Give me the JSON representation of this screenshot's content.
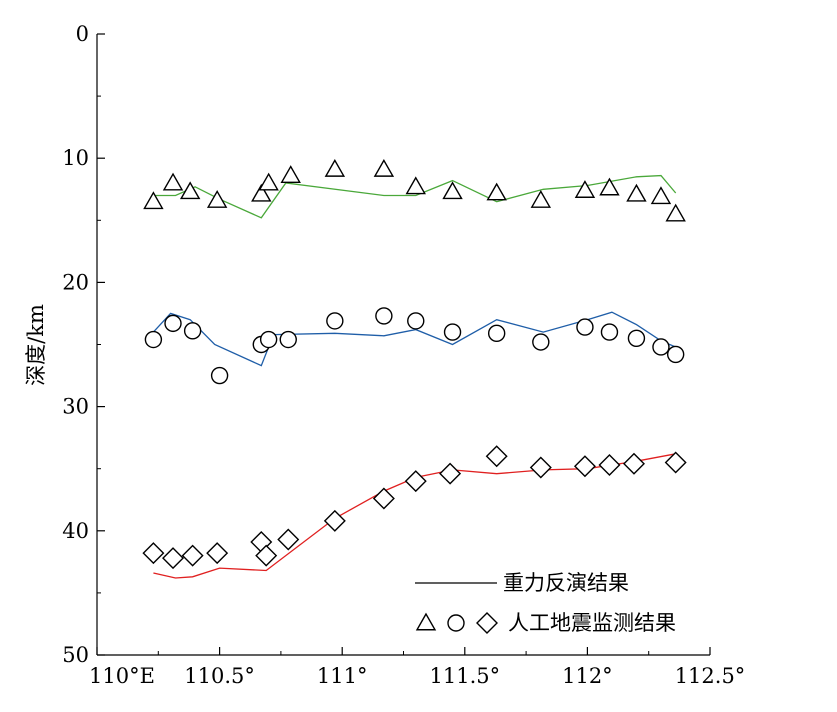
{
  "chart_data": {
    "type": "line",
    "xlabel": "",
    "ylabel": "深度/km",
    "xlim": [
      110,
      112.5
    ],
    "ylim": [
      0,
      50
    ],
    "y_inverted": true,
    "x_ticks": [
      {
        "value": 110,
        "label": "110°E"
      },
      {
        "value": 110.5,
        "label": "110.5°"
      },
      {
        "value": 111,
        "label": "111°"
      },
      {
        "value": 111.5,
        "label": "111.5°"
      },
      {
        "value": 112,
        "label": "112°"
      },
      {
        "value": 112.5,
        "label": "112.5°"
      }
    ],
    "y_ticks": [
      {
        "value": 0,
        "label": "0"
      },
      {
        "value": 10,
        "label": "10"
      },
      {
        "value": 20,
        "label": "20"
      },
      {
        "value": 30,
        "label": "30"
      },
      {
        "value": 40,
        "label": "40"
      },
      {
        "value": 50,
        "label": "50"
      }
    ],
    "legend": {
      "position": "bottom-right",
      "line_label": "重力反演结果",
      "marker_label": "人工地震监测结果"
    },
    "lines": [
      {
        "color": "#4aa83a",
        "x": [
          110.23,
          110.32,
          110.4,
          110.5,
          110.67,
          110.77,
          111.17,
          111.3,
          111.45,
          111.63,
          111.82,
          112.0,
          112.2,
          112.3,
          112.36
        ],
        "y": [
          13.0,
          13.0,
          12.3,
          13.3,
          14.8,
          12.0,
          13.0,
          13.0,
          11.8,
          13.5,
          12.5,
          12.2,
          11.5,
          11.4,
          12.8
        ]
      },
      {
        "color": "#1f5ea8",
        "x": [
          110.23,
          110.3,
          110.38,
          110.48,
          110.67,
          110.72,
          110.97,
          111.17,
          111.3,
          111.45,
          111.63,
          111.82,
          112.0,
          112.1,
          112.2,
          112.3,
          112.36
        ],
        "y": [
          24.0,
          22.5,
          23.0,
          25.0,
          26.7,
          24.2,
          24.1,
          24.3,
          23.8,
          25.0,
          23.0,
          24.0,
          23.0,
          22.4,
          23.4,
          24.7,
          25.2
        ]
      },
      {
        "color": "#e02020",
        "x": [
          110.23,
          110.32,
          110.39,
          110.5,
          110.69,
          110.97,
          111.17,
          111.3,
          111.45,
          111.63,
          111.82,
          112.0,
          112.2,
          112.36
        ],
        "y": [
          43.4,
          43.8,
          43.7,
          43.0,
          43.2,
          39.0,
          36.8,
          35.7,
          35.1,
          35.4,
          35.1,
          35.0,
          34.4,
          33.8
        ]
      }
    ],
    "marker_series": [
      {
        "marker": "triangle",
        "x": [
          110.23,
          110.31,
          110.38,
          110.49,
          110.67,
          110.7,
          110.79,
          110.97,
          111.17,
          111.3,
          111.45,
          111.63,
          111.81,
          111.99,
          112.09,
          112.2,
          112.3,
          112.36
        ],
        "y": [
          13.5,
          12.0,
          12.7,
          13.4,
          12.9,
          12.0,
          11.4,
          10.9,
          10.9,
          12.3,
          12.7,
          12.8,
          13.4,
          12.6,
          12.4,
          12.9,
          13.1,
          14.5
        ]
      },
      {
        "marker": "circle",
        "x": [
          110.23,
          110.31,
          110.39,
          110.5,
          110.67,
          110.7,
          110.78,
          110.97,
          111.17,
          111.3,
          111.45,
          111.63,
          111.81,
          111.99,
          112.09,
          112.2,
          112.3,
          112.36
        ],
        "y": [
          24.6,
          23.3,
          23.9,
          27.5,
          25.0,
          24.6,
          24.6,
          23.1,
          22.7,
          23.1,
          24.0,
          24.1,
          24.8,
          23.6,
          24.0,
          24.5,
          25.2,
          25.8
        ]
      },
      {
        "marker": "diamond",
        "x": [
          110.23,
          110.31,
          110.39,
          110.49,
          110.67,
          110.69,
          110.78,
          110.97,
          111.17,
          111.3,
          111.44,
          111.63,
          111.81,
          111.99,
          112.09,
          112.19,
          112.36
        ],
        "y": [
          41.8,
          42.2,
          42.0,
          41.8,
          40.9,
          42.0,
          40.7,
          39.2,
          37.4,
          36.0,
          35.4,
          34.0,
          34.9,
          34.8,
          34.7,
          34.6,
          34.5
        ]
      }
    ]
  }
}
